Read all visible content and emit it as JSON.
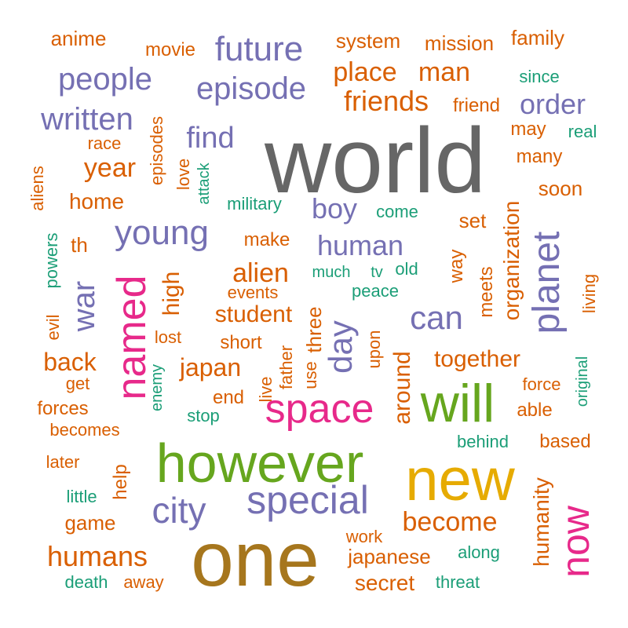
{
  "colors": {
    "gray": "#666666",
    "purple": "#7570b3",
    "orange": "#d95f02",
    "teal": "#1b9e77",
    "pink": "#e7298a",
    "green": "#66a61e",
    "gold": "#e6ab02",
    "brown": "#a6761d"
  },
  "words": [
    {
      "text": "world",
      "color": "gray"
    },
    {
      "text": "one",
      "color": "brown"
    },
    {
      "text": "new",
      "color": "gold"
    },
    {
      "text": "however",
      "color": "green"
    },
    {
      "text": "will",
      "color": "green"
    },
    {
      "text": "space",
      "color": "pink"
    },
    {
      "text": "now",
      "color": "pink"
    },
    {
      "text": "named",
      "color": "pink"
    },
    {
      "text": "planet",
      "color": "purple"
    },
    {
      "text": "special",
      "color": "purple"
    },
    {
      "text": "city",
      "color": "purple"
    },
    {
      "text": "young",
      "color": "purple"
    },
    {
      "text": "future",
      "color": "purple"
    },
    {
      "text": "people",
      "color": "purple"
    },
    {
      "text": "episode",
      "color": "purple"
    },
    {
      "text": "written",
      "color": "purple"
    },
    {
      "text": "order",
      "color": "purple"
    },
    {
      "text": "human",
      "color": "purple"
    },
    {
      "text": "can",
      "color": "purple"
    },
    {
      "text": "day",
      "color": "purple"
    },
    {
      "text": "war",
      "color": "purple"
    },
    {
      "text": "boy",
      "color": "purple"
    },
    {
      "text": "find",
      "color": "purple"
    },
    {
      "text": "become",
      "color": "orange"
    },
    {
      "text": "humans",
      "color": "orange"
    },
    {
      "text": "friends",
      "color": "orange"
    },
    {
      "text": "place",
      "color": "orange"
    },
    {
      "text": "man",
      "color": "orange"
    },
    {
      "text": "year",
      "color": "orange"
    },
    {
      "text": "japan",
      "color": "orange"
    },
    {
      "text": "alien",
      "color": "orange"
    },
    {
      "text": "back",
      "color": "orange"
    },
    {
      "text": "together",
      "color": "orange"
    },
    {
      "text": "around",
      "color": "orange"
    },
    {
      "text": "humanity",
      "color": "orange"
    },
    {
      "text": "student",
      "color": "orange"
    },
    {
      "text": "secret",
      "color": "orange"
    },
    {
      "text": "japanese",
      "color": "orange"
    },
    {
      "text": "high",
      "color": "orange"
    },
    {
      "text": "home",
      "color": "orange"
    },
    {
      "text": "organization",
      "color": "orange"
    },
    {
      "text": "system",
      "color": "orange"
    },
    {
      "text": "mission",
      "color": "orange"
    },
    {
      "text": "family",
      "color": "orange"
    },
    {
      "text": "anime",
      "color": "orange"
    },
    {
      "text": "movie",
      "color": "orange"
    },
    {
      "text": "friend",
      "color": "orange"
    },
    {
      "text": "may",
      "color": "orange"
    },
    {
      "text": "many",
      "color": "orange"
    },
    {
      "text": "soon",
      "color": "orange"
    },
    {
      "text": "set",
      "color": "orange"
    },
    {
      "text": "way",
      "color": "orange"
    },
    {
      "text": "meets",
      "color": "orange"
    },
    {
      "text": "three",
      "color": "orange"
    },
    {
      "text": "game",
      "color": "orange"
    },
    {
      "text": "help",
      "color": "orange"
    },
    {
      "text": "make",
      "color": "orange"
    },
    {
      "text": "th",
      "color": "orange"
    },
    {
      "text": "race",
      "color": "orange"
    },
    {
      "text": "love",
      "color": "orange"
    },
    {
      "text": "episodes",
      "color": "orange"
    },
    {
      "text": "short",
      "color": "orange"
    },
    {
      "text": "events",
      "color": "orange"
    },
    {
      "text": "lost",
      "color": "orange"
    },
    {
      "text": "father",
      "color": "orange"
    },
    {
      "text": "live",
      "color": "orange"
    },
    {
      "text": "use",
      "color": "orange"
    },
    {
      "text": "upon",
      "color": "orange"
    },
    {
      "text": "end",
      "color": "orange"
    },
    {
      "text": "get",
      "color": "orange"
    },
    {
      "text": "forces",
      "color": "orange"
    },
    {
      "text": "becomes",
      "color": "orange"
    },
    {
      "text": "later",
      "color": "orange"
    },
    {
      "text": "work",
      "color": "orange"
    },
    {
      "text": "force",
      "color": "orange"
    },
    {
      "text": "able",
      "color": "orange"
    },
    {
      "text": "based",
      "color": "orange"
    },
    {
      "text": "living",
      "color": "orange"
    },
    {
      "text": "evil",
      "color": "orange"
    },
    {
      "text": "aliens",
      "color": "orange"
    },
    {
      "text": "since",
      "color": "teal"
    },
    {
      "text": "real",
      "color": "teal"
    },
    {
      "text": "military",
      "color": "teal"
    },
    {
      "text": "come",
      "color": "teal"
    },
    {
      "text": "attack",
      "color": "teal"
    },
    {
      "text": "much",
      "color": "teal"
    },
    {
      "text": "tv",
      "color": "teal"
    },
    {
      "text": "old",
      "color": "teal"
    },
    {
      "text": "peace",
      "color": "teal"
    },
    {
      "text": "powers",
      "color": "teal"
    },
    {
      "text": "enemy",
      "color": "teal"
    },
    {
      "text": "stop",
      "color": "teal"
    },
    {
      "text": "original",
      "color": "teal"
    },
    {
      "text": "behind",
      "color": "teal"
    },
    {
      "text": "little",
      "color": "teal"
    },
    {
      "text": "along",
      "color": "teal"
    },
    {
      "text": "threat",
      "color": "teal"
    },
    {
      "text": "death",
      "color": "teal"
    },
    {
      "text": "away",
      "color": "orange"
    }
  ]
}
